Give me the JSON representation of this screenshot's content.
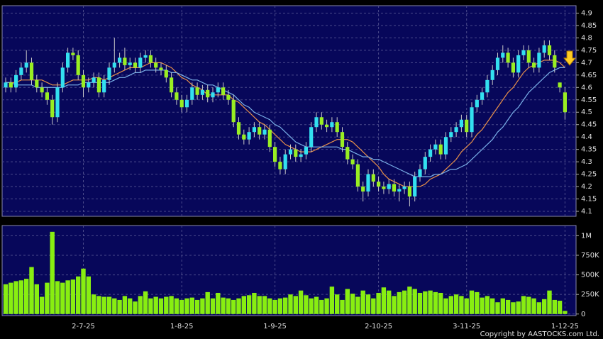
{
  "chart_data": [
    {
      "type": "candlestick",
      "categories": [
        null,
        null,
        null,
        null,
        null,
        null,
        null,
        null,
        null,
        null,
        null,
        null,
        null,
        null,
        null,
        "2-7-25",
        null,
        null,
        null,
        null,
        null,
        null,
        null,
        null,
        null,
        null,
        null,
        null,
        null,
        null,
        null,
        null,
        null,
        null,
        "1-8-25",
        null,
        null,
        null,
        null,
        null,
        null,
        null,
        null,
        null,
        null,
        null,
        null,
        null,
        null,
        null,
        null,
        null,
        "1-9-25",
        null,
        null,
        null,
        null,
        null,
        null,
        null,
        null,
        null,
        null,
        null,
        null,
        null,
        null,
        null,
        null,
        null,
        null,
        null,
        "2-10-25",
        null,
        null,
        null,
        null,
        null,
        null,
        null,
        null,
        null,
        null,
        null,
        null,
        null,
        null,
        null,
        null,
        "3-11-25",
        null,
        null,
        null,
        null,
        null,
        null,
        null,
        null,
        null,
        null,
        null,
        null,
        null,
        null,
        null,
        null,
        null,
        null,
        "1-12-25"
      ],
      "open": [
        4.6,
        4.62,
        4.6,
        4.65,
        4.68,
        4.7,
        4.63,
        4.6,
        4.58,
        4.55,
        4.48,
        4.6,
        4.68,
        4.74,
        4.73,
        4.65,
        4.6,
        4.62,
        4.64,
        4.58,
        4.63,
        4.68,
        4.7,
        4.72,
        4.69,
        4.7,
        4.68,
        4.72,
        4.73,
        4.7,
        4.68,
        4.67,
        4.64,
        4.58,
        4.55,
        4.52,
        4.55,
        4.6,
        4.57,
        4.59,
        4.56,
        4.58,
        4.6,
        4.57,
        4.55,
        4.46,
        4.41,
        4.39,
        4.42,
        4.44,
        4.41,
        4.43,
        4.36,
        4.3,
        4.27,
        4.33,
        4.35,
        4.32,
        4.33,
        4.36,
        4.44,
        4.48,
        4.45,
        4.44,
        4.46,
        4.42,
        4.36,
        4.31,
        4.29,
        4.2,
        4.18,
        4.25,
        4.22,
        4.2,
        4.19,
        4.21,
        4.18,
        4.19,
        4.2,
        4.16,
        4.24,
        4.27,
        4.32,
        4.35,
        4.37,
        4.33,
        4.4,
        4.42,
        4.44,
        4.47,
        4.42,
        4.52,
        4.55,
        4.58,
        4.63,
        4.67,
        4.72,
        4.74,
        4.7,
        4.66,
        4.73,
        4.75,
        4.7,
        4.68,
        4.74,
        4.77,
        4.73,
        4.62,
        4.58
      ],
      "high": [
        4.64,
        4.64,
        4.67,
        4.7,
        4.75,
        4.72,
        4.65,
        4.62,
        4.6,
        4.57,
        4.62,
        4.7,
        4.76,
        4.76,
        4.75,
        4.67,
        4.64,
        4.66,
        4.66,
        4.65,
        4.7,
        4.8,
        4.74,
        4.76,
        4.72,
        4.72,
        4.74,
        4.75,
        4.75,
        4.72,
        4.7,
        4.69,
        4.66,
        4.6,
        4.57,
        4.57,
        4.62,
        4.62,
        4.61,
        4.61,
        4.6,
        4.62,
        4.62,
        4.59,
        4.57,
        4.48,
        4.43,
        4.44,
        4.46,
        4.46,
        4.45,
        4.45,
        4.38,
        4.32,
        4.35,
        4.37,
        4.37,
        4.35,
        4.38,
        4.46,
        4.5,
        4.5,
        4.47,
        4.48,
        4.48,
        4.44,
        4.38,
        4.33,
        4.31,
        4.22,
        4.27,
        4.27,
        4.24,
        4.22,
        4.23,
        4.23,
        4.21,
        4.22,
        4.22,
        4.26,
        4.29,
        4.34,
        4.37,
        4.39,
        4.39,
        4.42,
        4.44,
        4.46,
        4.49,
        4.49,
        4.54,
        4.57,
        4.6,
        4.65,
        4.69,
        4.74,
        4.77,
        4.76,
        4.72,
        4.75,
        4.77,
        4.77,
        4.72,
        4.76,
        4.79,
        4.79,
        4.75,
        4.62,
        4.6
      ],
      "low": [
        4.58,
        4.58,
        4.58,
        4.63,
        4.66,
        4.61,
        4.58,
        4.56,
        4.53,
        4.45,
        4.46,
        4.58,
        4.66,
        4.71,
        4.63,
        4.56,
        4.58,
        4.6,
        4.56,
        4.56,
        4.61,
        4.66,
        4.68,
        4.67,
        4.67,
        4.66,
        4.66,
        4.7,
        4.68,
        4.66,
        4.65,
        4.62,
        4.56,
        4.53,
        4.5,
        4.5,
        4.53,
        4.55,
        4.55,
        4.54,
        4.54,
        4.56,
        4.55,
        4.53,
        4.44,
        4.39,
        4.37,
        4.37,
        4.4,
        4.39,
        4.39,
        4.34,
        4.28,
        4.25,
        4.25,
        4.31,
        4.3,
        4.3,
        4.31,
        4.34,
        4.42,
        4.43,
        4.42,
        4.42,
        4.4,
        4.34,
        4.29,
        4.27,
        4.18,
        4.14,
        4.16,
        4.2,
        4.18,
        4.17,
        4.17,
        4.16,
        4.14,
        4.17,
        4.12,
        4.14,
        4.22,
        4.25,
        4.3,
        4.33,
        4.31,
        4.31,
        4.38,
        4.4,
        4.42,
        4.4,
        4.4,
        4.5,
        4.53,
        4.56,
        4.61,
        4.65,
        4.7,
        4.68,
        4.64,
        4.64,
        4.71,
        4.68,
        4.66,
        4.66,
        4.72,
        4.71,
        4.66,
        4.58,
        4.47
      ],
      "close": [
        4.62,
        4.6,
        4.65,
        4.68,
        4.7,
        4.63,
        4.6,
        4.58,
        4.55,
        4.48,
        4.6,
        4.68,
        4.74,
        4.73,
        4.65,
        4.6,
        4.62,
        4.64,
        4.58,
        4.63,
        4.68,
        4.7,
        4.72,
        4.69,
        4.7,
        4.68,
        4.72,
        4.73,
        4.7,
        4.68,
        4.67,
        4.64,
        4.58,
        4.55,
        4.52,
        4.55,
        4.6,
        4.57,
        4.59,
        4.56,
        4.58,
        4.6,
        4.57,
        4.55,
        4.46,
        4.41,
        4.39,
        4.42,
        4.44,
        4.41,
        4.43,
        4.36,
        4.3,
        4.27,
        4.33,
        4.35,
        4.32,
        4.33,
        4.36,
        4.44,
        4.48,
        4.45,
        4.44,
        4.46,
        4.42,
        4.36,
        4.31,
        4.29,
        4.2,
        4.18,
        4.25,
        4.22,
        4.2,
        4.19,
        4.21,
        4.18,
        4.19,
        4.2,
        4.16,
        4.24,
        4.27,
        4.32,
        4.35,
        4.37,
        4.33,
        4.4,
        4.42,
        4.44,
        4.47,
        4.42,
        4.52,
        4.55,
        4.58,
        4.63,
        4.67,
        4.72,
        4.74,
        4.7,
        4.66,
        4.73,
        4.75,
        4.7,
        4.68,
        4.74,
        4.77,
        4.73,
        4.68,
        4.6,
        4.5
      ],
      "up_color": "#33e0f0",
      "down_color": "#99ee22",
      "moving_averages": [
        {
          "color": "#e8904a",
          "values": [
            4.62,
            4.62,
            4.62,
            4.63,
            4.63,
            4.63,
            4.63,
            4.63,
            4.62,
            4.61,
            4.61,
            4.61,
            4.62,
            4.63,
            4.63,
            4.63,
            4.63,
            4.64,
            4.64,
            4.63,
            4.64,
            4.65,
            4.66,
            4.67,
            4.68,
            4.68,
            4.68,
            4.69,
            4.7,
            4.7,
            4.7,
            4.69,
            4.68,
            4.66,
            4.64,
            4.63,
            4.61,
            4.6,
            4.59,
            4.57,
            4.57,
            4.57,
            4.57,
            4.57,
            4.55,
            4.54,
            4.52,
            4.5,
            4.48,
            4.46,
            4.45,
            4.43,
            4.41,
            4.39,
            4.37,
            4.36,
            4.35,
            4.34,
            4.34,
            4.34,
            4.35,
            4.36,
            4.37,
            4.38,
            4.39,
            4.39,
            4.39,
            4.38,
            4.36,
            4.34,
            4.32,
            4.3,
            4.28,
            4.25,
            4.23,
            4.22,
            4.21,
            4.2,
            4.2,
            4.2,
            4.2,
            4.21,
            4.23,
            4.24,
            4.25,
            4.27,
            4.29,
            4.31,
            4.34,
            4.36,
            4.38,
            4.41,
            4.43,
            4.46,
            4.49,
            4.52,
            4.55,
            4.58,
            4.6,
            4.63,
            4.66,
            4.68,
            4.69,
            4.7,
            4.71,
            4.71,
            4.71,
            4.7,
            4.68
          ]
        },
        {
          "color": "#7ab0e8",
          "values": [
            4.62,
            4.62,
            4.61,
            4.61,
            4.61,
            4.61,
            4.6,
            4.6,
            4.6,
            4.6,
            4.6,
            4.6,
            4.61,
            4.61,
            4.61,
            4.62,
            4.62,
            4.62,
            4.62,
            4.62,
            4.62,
            4.63,
            4.64,
            4.64,
            4.65,
            4.66,
            4.66,
            4.67,
            4.67,
            4.67,
            4.67,
            4.67,
            4.66,
            4.66,
            4.65,
            4.64,
            4.63,
            4.63,
            4.62,
            4.61,
            4.61,
            4.6,
            4.59,
            4.58,
            4.57,
            4.55,
            4.53,
            4.52,
            4.5,
            4.49,
            4.48,
            4.47,
            4.45,
            4.44,
            4.42,
            4.4,
            4.38,
            4.37,
            4.36,
            4.36,
            4.36,
            4.36,
            4.36,
            4.36,
            4.36,
            4.35,
            4.35,
            4.34,
            4.33,
            4.32,
            4.32,
            4.31,
            4.31,
            4.3,
            4.29,
            4.28,
            4.27,
            4.26,
            4.25,
            4.24,
            4.24,
            4.24,
            4.24,
            4.25,
            4.25,
            4.26,
            4.27,
            4.27,
            4.28,
            4.29,
            4.31,
            4.33,
            4.35,
            4.37,
            4.39,
            4.42,
            4.44,
            4.47,
            4.5,
            4.52,
            4.55,
            4.58,
            4.6,
            4.62,
            4.64,
            4.66,
            4.67,
            4.68,
            4.68
          ]
        }
      ],
      "ylim": [
        4.08,
        4.93
      ],
      "yticks": [
        4.1,
        4.15,
        4.2,
        4.25,
        4.3,
        4.35,
        4.4,
        4.45,
        4.5,
        4.55,
        4.6,
        4.65,
        4.7,
        4.75,
        4.8,
        4.85,
        4.9
      ],
      "grid": true
    },
    {
      "type": "bar",
      "values": [
        380000,
        400000,
        420000,
        430000,
        450000,
        600000,
        380000,
        220000,
        400000,
        1050000,
        420000,
        400000,
        430000,
        440000,
        480000,
        580000,
        480000,
        250000,
        230000,
        220000,
        220000,
        200000,
        180000,
        230000,
        200000,
        160000,
        230000,
        290000,
        200000,
        220000,
        200000,
        220000,
        230000,
        200000,
        180000,
        200000,
        210000,
        180000,
        200000,
        280000,
        200000,
        270000,
        210000,
        200000,
        180000,
        200000,
        230000,
        240000,
        270000,
        230000,
        230000,
        200000,
        180000,
        200000,
        210000,
        250000,
        230000,
        300000,
        240000,
        200000,
        220000,
        180000,
        200000,
        350000,
        250000,
        180000,
        320000,
        260000,
        220000,
        300000,
        250000,
        200000,
        270000,
        340000,
        300000,
        230000,
        280000,
        300000,
        350000,
        320000,
        270000,
        290000,
        300000,
        280000,
        270000,
        200000,
        230000,
        250000,
        230000,
        200000,
        300000,
        280000,
        210000,
        230000,
        200000,
        150000,
        200000,
        180000,
        150000,
        160000,
        230000,
        220000,
        200000,
        150000,
        190000,
        300000,
        180000,
        170000,
        40000
      ],
      "color": "#88ee11",
      "ylim": [
        -20000,
        1130000
      ],
      "yticks": [
        0,
        {
          "value": 250000,
          "label": "250K"
        },
        {
          "value": 500000,
          "label": "500K"
        },
        {
          "value": 750000,
          "label": "750K"
        },
        {
          "value": 1000000,
          "label": "1M"
        }
      ],
      "grid": true
    }
  ],
  "copyright": "Copyright by AASTOCKS.com Ltd."
}
